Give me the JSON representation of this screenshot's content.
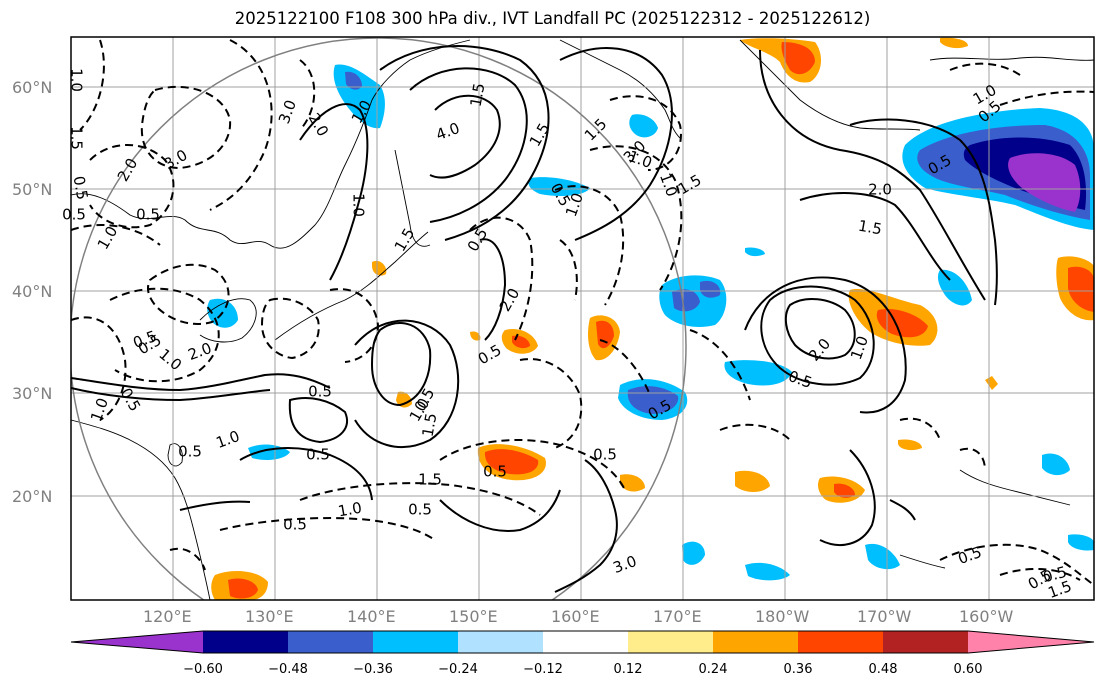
{
  "title": "2025122100 F108 300 hPa div., IVT Landfall PC (2025122312 - 2025122612)",
  "lat_labels": [
    "60°N",
    "50°N",
    "40°N",
    "30°N",
    "20°N"
  ],
  "lon_labels": [
    "120°E",
    "130°E",
    "140°E",
    "150°E",
    "160°E",
    "170°E",
    "180°W",
    "170°W",
    "160°W"
  ],
  "colorbar": {
    "colors": [
      "#9a32cd",
      "#00008b",
      "#3a5fcd",
      "#00bfff",
      "#b0e2ff",
      "#ffffff",
      "#ffec8b",
      "#ffa500",
      "#ff4500",
      "#b22222",
      "#ff82ab"
    ],
    "ticks": [
      "−0.60",
      "−0.48",
      "−0.36",
      "−0.24",
      "−0.12",
      "0.12",
      "0.24",
      "0.36",
      "0.48",
      "0.60"
    ]
  },
  "contour_labels": [
    "1.0",
    "1.5",
    "0.5",
    "2.0",
    "3.0",
    "1.0",
    "0.5",
    "0.5",
    "3.0",
    "4.0",
    "1.5",
    "1.0",
    "2.0",
    "1.5",
    "3.0",
    "1.0",
    "0.5",
    "1.0",
    "1.5",
    "0.5",
    "1.0",
    "1.5",
    "2.0",
    "0.5",
    "0.5",
    "1.0",
    "2.0",
    "0.5",
    "1.0",
    "0.5",
    "1.0",
    "0.5",
    "0.5",
    "0.5",
    "1.0",
    "1.5",
    "0.5",
    "0.5",
    "1.5",
    "0.5",
    "0.5",
    "1.0",
    "3.0",
    "1.0",
    "1.5",
    "0.5",
    "2.0",
    "1.5",
    "0.5",
    "0.5",
    "2.0",
    "1.0",
    "0.5",
    "0.5",
    "1.0",
    "0.5",
    "0.5",
    "1.5",
    "0.5"
  ]
}
